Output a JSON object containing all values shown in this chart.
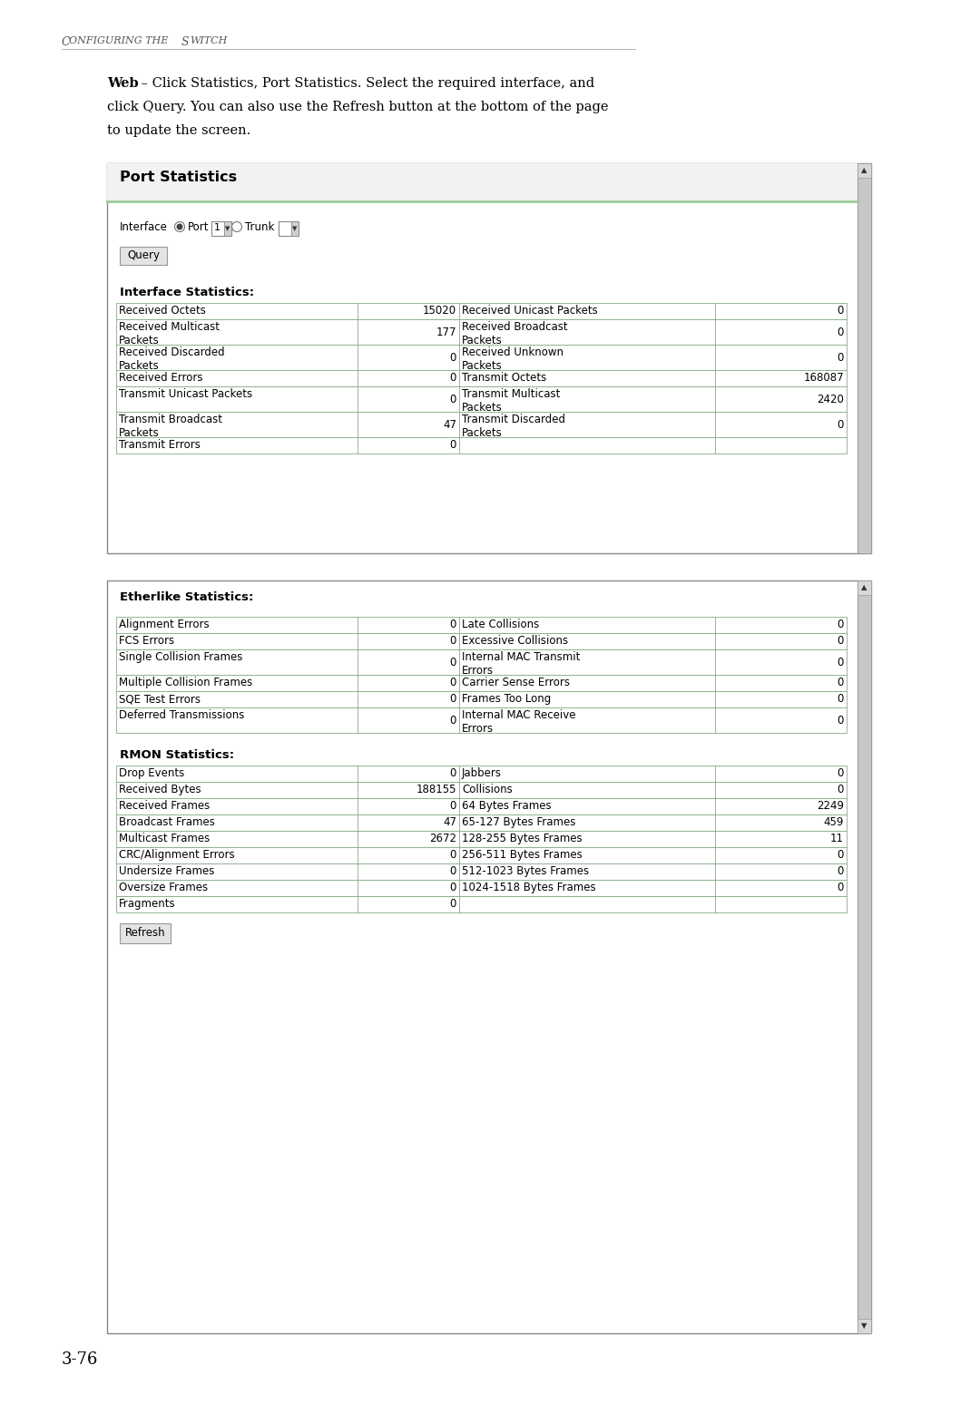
{
  "page_title": "Configuring the Switch",
  "page_number": "3-76",
  "body_text_line1": "Web – Click Statistics, Port Statistics. Select the required interface, and",
  "body_text_line2": "click Query. You can also use the Refresh button at the bottom of the page",
  "body_text_line3": "to update the screen.",
  "panel1_title": "Port Statistics",
  "panel1_subtitle": "Interface Statistics:",
  "query_btn": "Query",
  "port_stats_rows": [
    [
      "Received Octets",
      "15020",
      "Received Unicast Packets",
      "0"
    ],
    [
      "Received Multicast\nPackets",
      "177",
      "Received Broadcast\nPackets",
      "0"
    ],
    [
      "Received Discarded\nPackets",
      "0",
      "Received Unknown\nPackets",
      "0"
    ],
    [
      "Received Errors",
      "0",
      "Transmit Octets",
      "168087"
    ],
    [
      "Transmit Unicast Packets",
      "0",
      "Transmit Multicast\nPackets",
      "2420"
    ],
    [
      "Transmit Broadcast\nPackets",
      "47",
      "Transmit Discarded\nPackets",
      "0"
    ],
    [
      "Transmit Errors",
      "0",
      "",
      ""
    ]
  ],
  "port_row_heights": [
    18,
    28,
    28,
    18,
    28,
    28,
    18
  ],
  "panel2_title": "Etherlike Statistics:",
  "etherlike_rows": [
    [
      "Alignment Errors",
      "0",
      "Late Collisions",
      "0"
    ],
    [
      "FCS Errors",
      "0",
      "Excessive Collisions",
      "0"
    ],
    [
      "Single Collision Frames",
      "0",
      "Internal MAC Transmit\nErrors",
      "0"
    ],
    [
      "Multiple Collision Frames",
      "0",
      "Carrier Sense Errors",
      "0"
    ],
    [
      "SQE Test Errors",
      "0",
      "Frames Too Long",
      "0"
    ],
    [
      "Deferred Transmissions",
      "0",
      "Internal MAC Receive\nErrors",
      "0"
    ]
  ],
  "etherlike_row_heights": [
    18,
    18,
    28,
    18,
    18,
    28
  ],
  "rmon_title": "RMON Statistics:",
  "rmon_rows": [
    [
      "Drop Events",
      "0",
      "Jabbers",
      "0"
    ],
    [
      "Received Bytes",
      "188155",
      "Collisions",
      "0"
    ],
    [
      "Received Frames",
      "0",
      "64 Bytes Frames",
      "2249"
    ],
    [
      "Broadcast Frames",
      "47",
      "65-127 Bytes Frames",
      "459"
    ],
    [
      "Multicast Frames",
      "2672",
      "128-255 Bytes Frames",
      "11"
    ],
    [
      "CRC/Alignment Errors",
      "0",
      "256-511 Bytes Frames",
      "0"
    ],
    [
      "Undersize Frames",
      "0",
      "512-1023 Bytes Frames",
      "0"
    ],
    [
      "Oversize Frames",
      "0",
      "1024-1518 Bytes Frames",
      "0"
    ],
    [
      "Fragments",
      "0",
      "",
      ""
    ]
  ],
  "rmon_row_heights": [
    18,
    18,
    18,
    18,
    18,
    18,
    18,
    18,
    18
  ],
  "refresh_btn": "Refresh",
  "bg_color": "#ffffff",
  "table_line_color": "#88aa88",
  "panel_border_color": "#888888",
  "scrollbar_color": "#c8c8c8",
  "header_bg": "#f0f0f0",
  "sep_line_color": "#99cc99"
}
